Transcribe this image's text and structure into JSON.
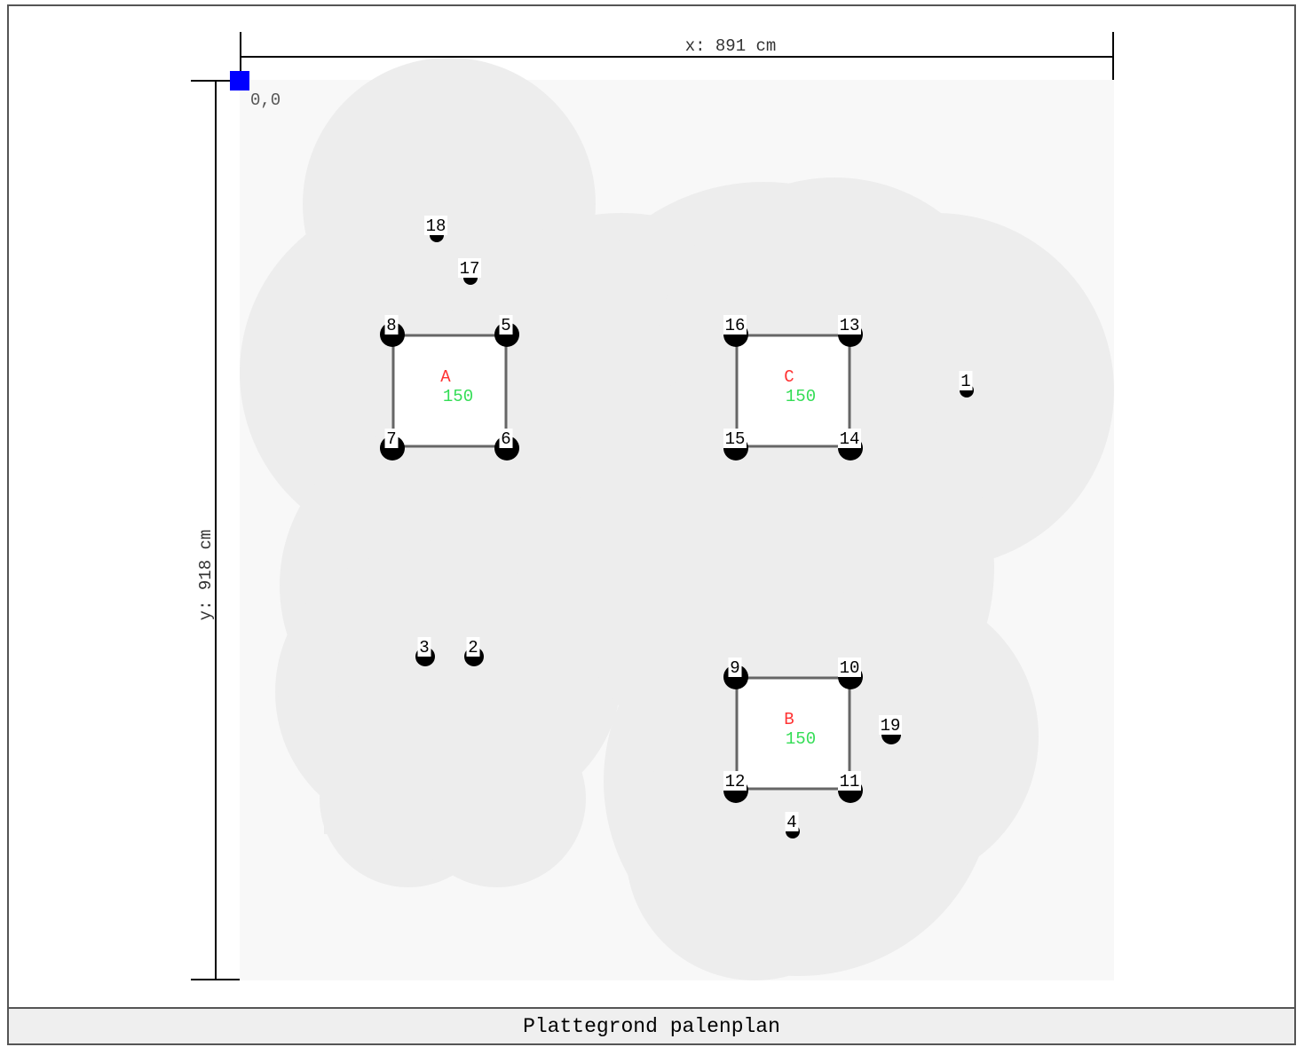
{
  "dims": {
    "x_label": "x: 891 cm",
    "y_label": "y: 918 cm",
    "origin_label": "0,0"
  },
  "footer": {
    "title": "Plattegrond palenplan"
  },
  "colors": {
    "area_bg": "#f8f8f8",
    "zone": "#ededed",
    "origin": "#0000ff",
    "group_label": "#ff3333",
    "group_value": "#33dd55",
    "pile": "#000000",
    "frame_line": "#666666"
  },
  "groups": [
    {
      "label": "A",
      "value": "150",
      "corner_piles": [
        "8",
        "5",
        "6",
        "7"
      ]
    },
    {
      "label": "C",
      "value": "150",
      "corner_piles": [
        "16",
        "13",
        "14",
        "15"
      ]
    },
    {
      "label": "B",
      "value": "150",
      "corner_piles": [
        "9",
        "10",
        "11",
        "12"
      ]
    }
  ],
  "piles": [
    {
      "id": "1",
      "size": "small"
    },
    {
      "id": "2",
      "size": "medium"
    },
    {
      "id": "3",
      "size": "medium"
    },
    {
      "id": "4",
      "size": "small"
    },
    {
      "id": "5",
      "size": "large"
    },
    {
      "id": "6",
      "size": "large"
    },
    {
      "id": "7",
      "size": "large"
    },
    {
      "id": "8",
      "size": "large"
    },
    {
      "id": "9",
      "size": "large"
    },
    {
      "id": "10",
      "size": "large"
    },
    {
      "id": "11",
      "size": "large"
    },
    {
      "id": "12",
      "size": "large"
    },
    {
      "id": "13",
      "size": "large"
    },
    {
      "id": "14",
      "size": "large"
    },
    {
      "id": "15",
      "size": "large"
    },
    {
      "id": "16",
      "size": "large"
    },
    {
      "id": "17",
      "size": "small"
    },
    {
      "id": "18",
      "size": "small"
    },
    {
      "id": "19",
      "size": "medium"
    }
  ]
}
